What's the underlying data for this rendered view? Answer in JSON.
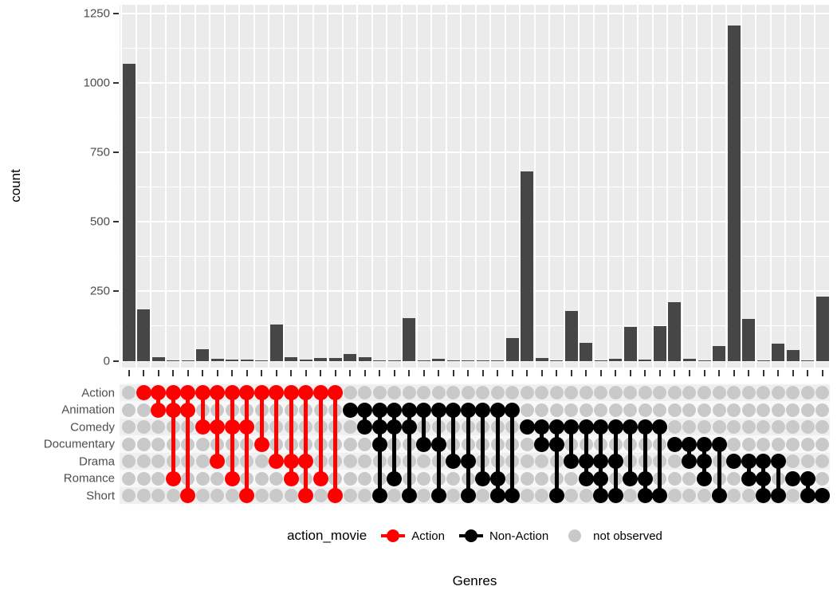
{
  "y_axis": {
    "label": "count",
    "ticks": [
      "0",
      "250",
      "500",
      "750",
      "1000",
      "1250"
    ]
  },
  "x_axis": {
    "label": "Genres"
  },
  "legend": {
    "title": "action_movie",
    "items": [
      {
        "label": "Action",
        "color": "#FF0000",
        "glyph": "line-dot"
      },
      {
        "label": "Non-Action",
        "color": "#000000",
        "glyph": "line-dot"
      },
      {
        "label": "not observed",
        "color": "#C9C9C9",
        "glyph": "dot"
      }
    ]
  },
  "matrix_rows": [
    "Action",
    "Animation",
    "Comedy",
    "Documentary",
    "Drama",
    "Romance",
    "Short"
  ],
  "colors": {
    "bar": "#464646",
    "panel_bg": "#EBEBEB",
    "grid": "#FFFFFF",
    "inactive_dot": "#C9C9C9",
    "action": "#FF0000",
    "non_action": "#000000",
    "stripe_dark": "#EFEFEF",
    "stripe_light": "#F8F8F8"
  },
  "chart_data": {
    "type": "bar",
    "title": "",
    "xlabel": "Genres",
    "ylabel": "count",
    "ylim": [
      0,
      1280
    ],
    "yticks": [
      0,
      250,
      500,
      750,
      1000,
      1250
    ],
    "grid": true,
    "legend_position": "bottom",
    "sets": [
      "Action",
      "Animation",
      "Comedy",
      "Documentary",
      "Drama",
      "Romance",
      "Short"
    ],
    "combinations": [
      {
        "sets": [],
        "count": 1070
      },
      {
        "sets": [
          "Action"
        ],
        "count": 184
      },
      {
        "sets": [
          "Action",
          "Animation"
        ],
        "count": 12
      },
      {
        "sets": [
          "Action",
          "Animation",
          "Romance"
        ],
        "count": 2
      },
      {
        "sets": [
          "Action",
          "Animation",
          "Short"
        ],
        "count": 2
      },
      {
        "sets": [
          "Action",
          "Comedy"
        ],
        "count": 42
      },
      {
        "sets": [
          "Action",
          "Comedy",
          "Drama"
        ],
        "count": 7
      },
      {
        "sets": [
          "Action",
          "Comedy",
          "Romance"
        ],
        "count": 5
      },
      {
        "sets": [
          "Action",
          "Comedy",
          "Short"
        ],
        "count": 5
      },
      {
        "sets": [
          "Action",
          "Documentary"
        ],
        "count": 2
      },
      {
        "sets": [
          "Action",
          "Drama"
        ],
        "count": 130
      },
      {
        "sets": [
          "Action",
          "Drama",
          "Romance"
        ],
        "count": 14
      },
      {
        "sets": [
          "Action",
          "Drama",
          "Short"
        ],
        "count": 4
      },
      {
        "sets": [
          "Action",
          "Romance"
        ],
        "count": 10
      },
      {
        "sets": [
          "Action",
          "Short"
        ],
        "count": 10
      },
      {
        "sets": [
          "Animation"
        ],
        "count": 25
      },
      {
        "sets": [
          "Animation",
          "Comedy"
        ],
        "count": 12
      },
      {
        "sets": [
          "Animation",
          "Comedy",
          "Documentary",
          "Short"
        ],
        "count": 3
      },
      {
        "sets": [
          "Animation",
          "Comedy",
          "Romance"
        ],
        "count": 3
      },
      {
        "sets": [
          "Animation",
          "Comedy",
          "Short"
        ],
        "count": 155
      },
      {
        "sets": [
          "Animation",
          "Documentary"
        ],
        "count": 2
      },
      {
        "sets": [
          "Animation",
          "Documentary",
          "Short"
        ],
        "count": 7
      },
      {
        "sets": [
          "Animation",
          "Drama"
        ],
        "count": 2
      },
      {
        "sets": [
          "Animation",
          "Drama",
          "Short"
        ],
        "count": 2
      },
      {
        "sets": [
          "Animation",
          "Romance"
        ],
        "count": 2
      },
      {
        "sets": [
          "Animation",
          "Romance",
          "Short"
        ],
        "count": 2
      },
      {
        "sets": [
          "Animation",
          "Short"
        ],
        "count": 83
      },
      {
        "sets": [
          "Comedy"
        ],
        "count": 680
      },
      {
        "sets": [
          "Comedy",
          "Documentary"
        ],
        "count": 10
      },
      {
        "sets": [
          "Comedy",
          "Documentary",
          "Short"
        ],
        "count": 2
      },
      {
        "sets": [
          "Comedy",
          "Drama"
        ],
        "count": 180
      },
      {
        "sets": [
          "Comedy",
          "Drama",
          "Romance"
        ],
        "count": 65
      },
      {
        "sets": [
          "Comedy",
          "Drama",
          "Romance",
          "Short"
        ],
        "count": 3
      },
      {
        "sets": [
          "Comedy",
          "Drama",
          "Short"
        ],
        "count": 7
      },
      {
        "sets": [
          "Comedy",
          "Romance"
        ],
        "count": 122
      },
      {
        "sets": [
          "Comedy",
          "Romance",
          "Short"
        ],
        "count": 4
      },
      {
        "sets": [
          "Comedy",
          "Short"
        ],
        "count": 124
      },
      {
        "sets": [
          "Documentary"
        ],
        "count": 212
      },
      {
        "sets": [
          "Documentary",
          "Drama"
        ],
        "count": 8
      },
      {
        "sets": [
          "Documentary",
          "Drama",
          "Romance"
        ],
        "count": 2
      },
      {
        "sets": [
          "Documentary",
          "Short"
        ],
        "count": 52
      },
      {
        "sets": [
          "Drama"
        ],
        "count": 1205
      },
      {
        "sets": [
          "Drama",
          "Romance"
        ],
        "count": 150
      },
      {
        "sets": [
          "Drama",
          "Romance",
          "Short"
        ],
        "count": 1
      },
      {
        "sets": [
          "Drama",
          "Short"
        ],
        "count": 62
      },
      {
        "sets": [
          "Romance"
        ],
        "count": 40
      },
      {
        "sets": [
          "Romance",
          "Short"
        ],
        "count": 2
      },
      {
        "sets": [
          "Short"
        ],
        "count": 230
      }
    ]
  }
}
